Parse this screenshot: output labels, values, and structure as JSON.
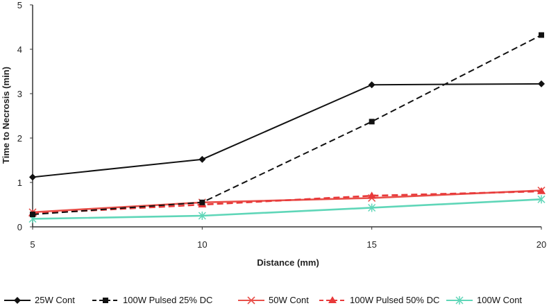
{
  "chart_data": {
    "type": "line",
    "xlabel": "Distance (mm)",
    "ylabel": "Time to Necrosis (min)",
    "x": [
      5,
      10,
      15,
      20
    ],
    "xlim": [
      5,
      20
    ],
    "ylim": [
      0,
      5
    ],
    "yticks": [
      "0",
      "1",
      "2",
      "3",
      "4",
      "5"
    ],
    "xticks": [
      "5",
      "10",
      "15",
      "20"
    ],
    "grid": false,
    "legend_position": "bottom",
    "series": [
      {
        "name": "25W Cont",
        "values": [
          1.12,
          1.52,
          3.2,
          3.22
        ],
        "color": "#111111",
        "dash": "solid",
        "marker": "diamond"
      },
      {
        "name": "100W Pulsed 25% DC",
        "values": [
          0.28,
          0.55,
          2.37,
          4.32
        ],
        "color": "#111111",
        "dash": "dashed",
        "marker": "square"
      },
      {
        "name": "50W Cont",
        "values": [
          0.33,
          0.55,
          0.65,
          0.82
        ],
        "color": "#e8504a",
        "dash": "solid",
        "marker": "x"
      },
      {
        "name": "100W Pulsed 50% DC",
        "values": [
          0.3,
          0.5,
          0.7,
          0.8
        ],
        "color": "#e8393a",
        "dash": "dashed",
        "marker": "triangle"
      },
      {
        "name": "100W Cont",
        "values": [
          0.18,
          0.25,
          0.43,
          0.62
        ],
        "color": "#5fd6b8",
        "dash": "solid",
        "marker": "asterisk"
      }
    ]
  }
}
